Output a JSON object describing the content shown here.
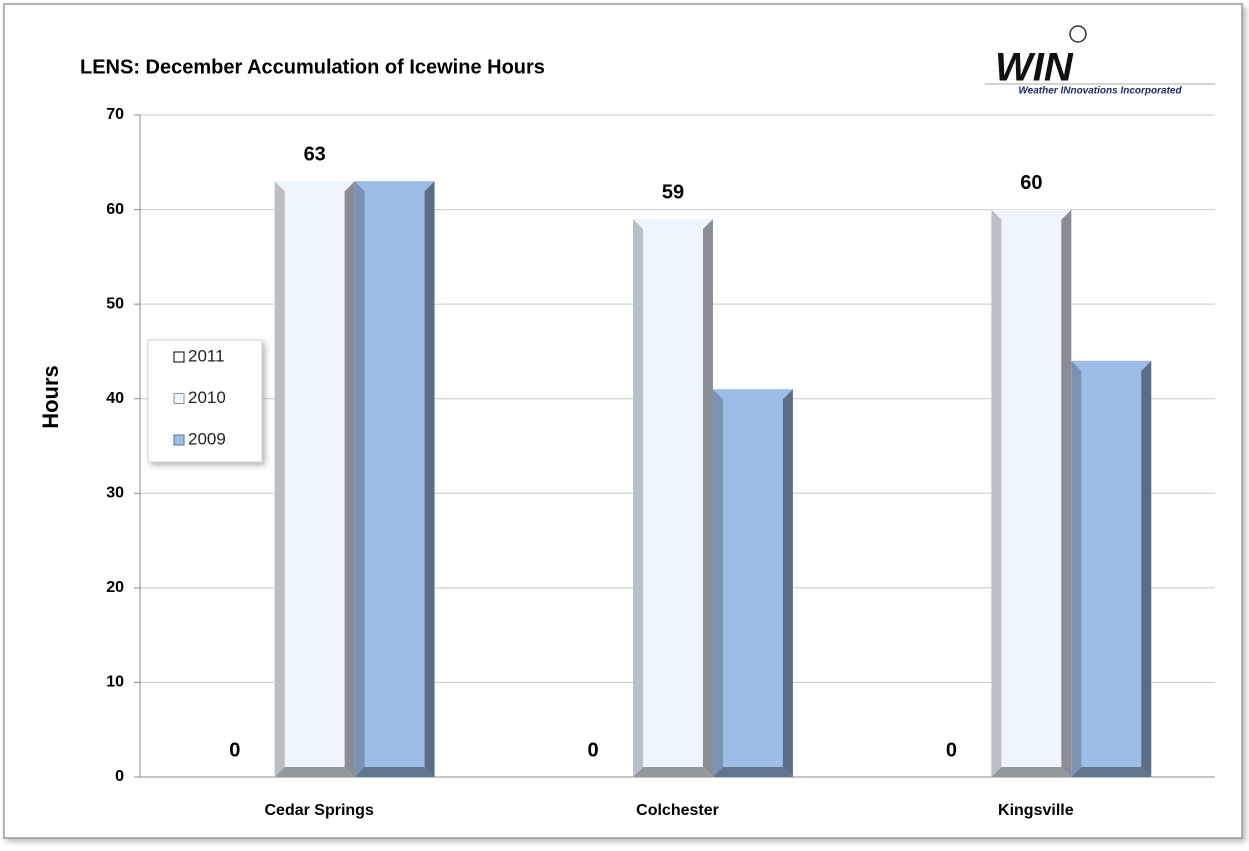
{
  "chart_data": {
    "type": "bar",
    "title": "LENS: December Accumulation of Icewine Hours",
    "logo": {
      "text": "WIN",
      "tagline": "Weather INnovations Incorporated"
    },
    "ylabel": "Hours",
    "categories": [
      "Cedar Springs",
      "Colchester",
      "Kingsville"
    ],
    "series": [
      {
        "name": "2011",
        "color": "#ffffff",
        "data_labels": true,
        "values": [
          0,
          0,
          0
        ]
      },
      {
        "name": "2010",
        "color": "#eef5fd",
        "data_labels": true,
        "values": [
          63,
          59,
          60
        ]
      },
      {
        "name": "2009",
        "color": "#9dbde6",
        "data_labels": false,
        "values": [
          63,
          41,
          44
        ]
      }
    ],
    "ylim": [
      0,
      70
    ],
    "yticks": [
      0,
      10,
      20,
      30,
      40,
      50,
      60,
      70
    ],
    "grid": true,
    "legend": "left"
  }
}
